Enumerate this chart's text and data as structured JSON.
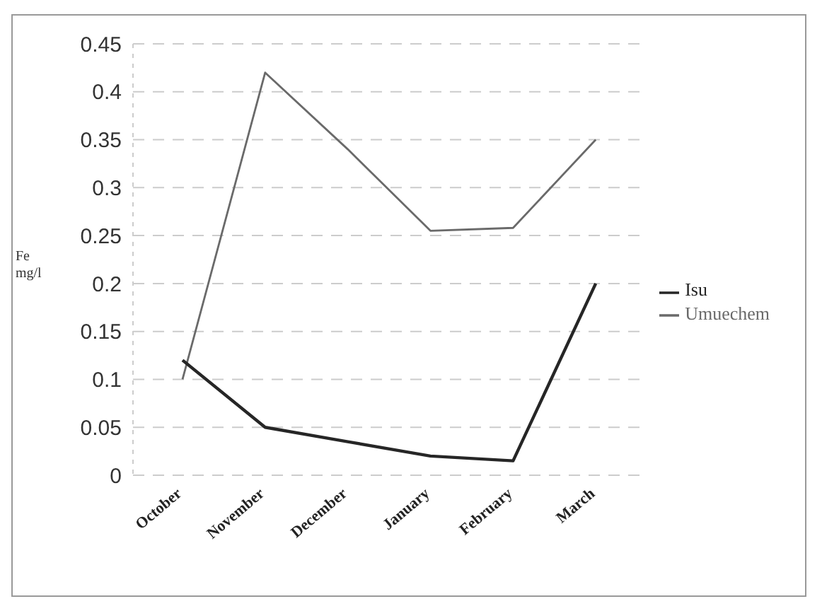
{
  "chart_data": {
    "type": "line",
    "ylabel": "Fe mg/l",
    "categories": [
      "October",
      "November",
      "December",
      "January",
      "February",
      "March"
    ],
    "series": [
      {
        "name": "Umuechem",
        "color": "#6a6a6a",
        "values": [
          0.1,
          0.42,
          0.34,
          0.255,
          0.258,
          0.35
        ]
      },
      {
        "name": "Isu",
        "color": "#262626",
        "values": [
          0.12,
          0.05,
          0.035,
          0.02,
          0.015,
          0.2
        ]
      }
    ],
    "ylim": [
      0,
      0.45
    ],
    "yticks": [
      0,
      0.05,
      0.1,
      0.15,
      0.2,
      0.25,
      0.3,
      0.35,
      0.4,
      0.45
    ],
    "grid": "y",
    "legend": "right",
    "marker": "none"
  }
}
